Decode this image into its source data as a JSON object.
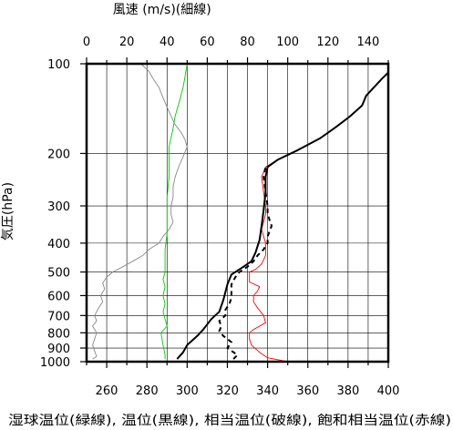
{
  "chart_data": {
    "type": "line",
    "top_axis": {
      "label": "風速 (m/s)(細線)",
      "range": [
        0,
        150
      ],
      "ticks": [
        0,
        20,
        40,
        60,
        80,
        100,
        120,
        140
      ],
      "grid_step": 10
    },
    "bottom_axis": {
      "label": "湿球温位(緑線), 温位(黒線), 相当温位(破線), 飽和相当温位(赤線)",
      "range": [
        250,
        400
      ],
      "ticks": [
        260,
        280,
        300,
        320,
        340,
        360,
        380,
        400
      ]
    },
    "y_axis": {
      "label": "気圧(hPa)",
      "scale": "log",
      "range": [
        1000,
        100
      ],
      "ticks": [
        100,
        200,
        300,
        400,
        500,
        600,
        700,
        800,
        900,
        1000
      ]
    },
    "series": [
      {
        "axis": "bottom",
        "color": "#ff0000",
        "style": "solid-thin",
        "points": [
          [
            350,
            1000
          ],
          [
            340,
            970
          ],
          [
            336,
            930
          ],
          [
            332,
            880
          ],
          [
            331,
            840
          ],
          [
            331,
            800
          ],
          [
            333,
            780
          ],
          [
            336,
            760
          ],
          [
            339,
            740
          ],
          [
            338,
            700
          ],
          [
            335,
            660
          ],
          [
            333,
            630
          ],
          [
            333,
            600
          ],
          [
            335,
            580
          ],
          [
            336,
            560
          ],
          [
            331,
            540
          ],
          [
            331,
            520
          ],
          [
            331,
            500
          ],
          [
            334,
            490
          ],
          [
            337,
            470
          ],
          [
            339,
            440
          ],
          [
            339,
            400
          ],
          [
            337,
            360
          ],
          [
            339,
            320
          ],
          [
            339,
            300
          ],
          [
            338,
            270
          ],
          [
            337,
            240
          ],
          [
            339,
            222
          ],
          [
            345,
            210
          ],
          [
            355,
            195
          ],
          [
            366,
            178
          ],
          [
            374,
            163
          ],
          [
            381,
            150
          ],
          [
            387,
            138
          ],
          [
            389,
            128
          ],
          [
            397,
            112
          ],
          [
            400,
            107
          ]
        ]
      },
      {
        "axis": "bottom",
        "color": "#000000",
        "style": "dashed",
        "points": [
          [
            323,
            980
          ],
          [
            325,
            950
          ],
          [
            320,
            900
          ],
          [
            322,
            860
          ],
          [
            318,
            820
          ],
          [
            316,
            790
          ],
          [
            317,
            760
          ],
          [
            316,
            730
          ],
          [
            319,
            700
          ],
          [
            319,
            670
          ],
          [
            321,
            640
          ],
          [
            322,
            610
          ],
          [
            322,
            580
          ],
          [
            322,
            550
          ],
          [
            324,
            520
          ],
          [
            326,
            500
          ],
          [
            330,
            480
          ],
          [
            333,
            460
          ],
          [
            335,
            440
          ],
          [
            338,
            420
          ],
          [
            340,
            400
          ],
          [
            340,
            380
          ],
          [
            342,
            350
          ],
          [
            340,
            320
          ],
          [
            340,
            300
          ],
          [
            339,
            270
          ],
          [
            338,
            240
          ],
          [
            339,
            222
          ]
        ]
      },
      {
        "axis": "bottom",
        "color": "#000000",
        "style": "solid",
        "points": [
          [
            295,
            980
          ],
          [
            298,
            930
          ],
          [
            300,
            880
          ],
          [
            305,
            820
          ],
          [
            308,
            780
          ],
          [
            312,
            720
          ],
          [
            316,
            680
          ],
          [
            318,
            620
          ],
          [
            320,
            550
          ],
          [
            322,
            510
          ],
          [
            328,
            480
          ],
          [
            332,
            460
          ],
          [
            334,
            430
          ],
          [
            336,
            390
          ],
          [
            337,
            350
          ],
          [
            338,
            310
          ],
          [
            339,
            270
          ],
          [
            339,
            240
          ],
          [
            340,
            222
          ],
          [
            345,
            210
          ],
          [
            355,
            195
          ],
          [
            366,
            178
          ],
          [
            374,
            163
          ],
          [
            381,
            150
          ],
          [
            387,
            138
          ],
          [
            389,
            128
          ],
          [
            397,
            112
          ],
          [
            400,
            107
          ]
        ]
      },
      {
        "axis": "bottom",
        "color": "#00cc00",
        "style": "solid-thin",
        "points": [
          [
            289,
            980
          ],
          [
            289,
            950
          ],
          [
            288,
            880
          ],
          [
            287,
            800
          ],
          [
            290,
            760
          ],
          [
            289,
            720
          ],
          [
            288,
            680
          ],
          [
            289,
            640
          ],
          [
            288,
            600
          ],
          [
            289,
            560
          ],
          [
            288,
            530
          ],
          [
            289,
            500
          ],
          [
            289,
            470
          ],
          [
            289,
            420
          ],
          [
            290,
            370
          ],
          [
            290,
            320
          ],
          [
            290,
            280
          ],
          [
            291,
            240
          ],
          [
            291,
            220
          ],
          [
            291,
            190
          ],
          [
            293,
            165
          ],
          [
            294,
            150
          ],
          [
            296,
            135
          ],
          [
            298,
            120
          ],
          [
            299,
            110
          ],
          [
            300,
            100
          ]
        ]
      },
      {
        "axis": "top",
        "color": "#888888",
        "style": "solid-thin",
        "points": [
          [
            3,
            980
          ],
          [
            5,
            960
          ],
          [
            4,
            920
          ],
          [
            3,
            880
          ],
          [
            4,
            840
          ],
          [
            5,
            800
          ],
          [
            3,
            760
          ],
          [
            5,
            730
          ],
          [
            4,
            700
          ],
          [
            6,
            660
          ],
          [
            8,
            630
          ],
          [
            7,
            600
          ],
          [
            9,
            570
          ],
          [
            8,
            545
          ],
          [
            10,
            520
          ],
          [
            13,
            500
          ],
          [
            18,
            480
          ],
          [
            23,
            460
          ],
          [
            28,
            440
          ],
          [
            31,
            420
          ],
          [
            36,
            400
          ],
          [
            38,
            380
          ],
          [
            41,
            360
          ],
          [
            43,
            340
          ],
          [
            42,
            320
          ],
          [
            42,
            300
          ],
          [
            43,
            280
          ],
          [
            43,
            260
          ],
          [
            44,
            240
          ],
          [
            46,
            220
          ],
          [
            48,
            205
          ],
          [
            50,
            190
          ],
          [
            49,
            180
          ],
          [
            47,
            170
          ],
          [
            44,
            160
          ],
          [
            42,
            150
          ],
          [
            40,
            140
          ],
          [
            38,
            130
          ],
          [
            36,
            120
          ],
          [
            33,
            112
          ],
          [
            31,
            106
          ],
          [
            27,
            100
          ]
        ]
      }
    ]
  }
}
